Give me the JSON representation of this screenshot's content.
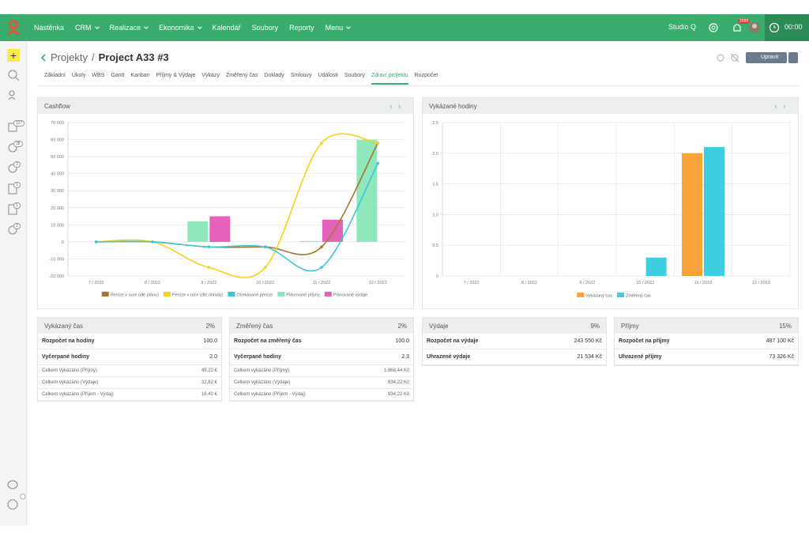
{
  "nav": {
    "items": [
      {
        "label": "Nástěnka",
        "dropdown": false
      },
      {
        "label": "CRM",
        "dropdown": true
      },
      {
        "label": "Realizace",
        "dropdown": true
      },
      {
        "label": "Ekonomika",
        "dropdown": true
      },
      {
        "label": "Kalendář",
        "dropdown": false
      },
      {
        "label": "Soubory",
        "dropdown": false
      },
      {
        "label": "Reporty",
        "dropdown": false
      },
      {
        "label": "Menu",
        "dropdown": true
      }
    ],
    "workspace": "Studio Q",
    "notifications": "2588",
    "timer": "00:00"
  },
  "sidebar": {
    "badges": [
      "127",
      "38",
      "3",
      "1",
      "1",
      "2"
    ]
  },
  "header": {
    "breadcrumb": "Projekty",
    "separator": "/",
    "title": "Project A33 #3",
    "edit_button": "Upravit"
  },
  "tabs": {
    "items": [
      "Základní",
      "Úkoly",
      "WBS",
      "Gantt",
      "Kanban",
      "Příjmy & Výdaje",
      "Výkazy",
      "Změřený čas",
      "Doklady",
      "Smlouvy",
      "Události",
      "Soubory",
      "Zdraví projektu",
      "Rozpočet"
    ],
    "active": 12
  },
  "chart_data": [
    {
      "type": "combo",
      "title": "Cashflow",
      "categories": [
        "7 / 2022",
        "8 / 2022",
        "9 / 2022",
        "10 / 2022",
        "11 / 2022",
        "12 / 2022"
      ],
      "series": [
        {
          "name": "Peníze v ruce (dle plánu)",
          "type": "line",
          "color": "#a8772c",
          "values": [
            0,
            0,
            -3000,
            -3000,
            -3000,
            58000
          ]
        },
        {
          "name": "Peníze v ruce (dle úhrady)",
          "type": "line",
          "color": "#f8d11a",
          "values": [
            0,
            0,
            -15000,
            -15000,
            58000,
            58000
          ]
        },
        {
          "name": "Očekávané peníze",
          "type": "line",
          "color": "#38c9dc",
          "values": [
            0,
            0,
            -3000,
            -3000,
            -15000,
            46000
          ]
        },
        {
          "name": "Plánované příjmy",
          "type": "bar",
          "color": "#8ee8bb",
          "values": [
            0,
            0,
            12000,
            0,
            500,
            60000
          ]
        },
        {
          "name": "Plánované výdaje",
          "type": "bar",
          "color": "#e462b9",
          "values": [
            0,
            0,
            15000,
            0,
            13000,
            0
          ]
        }
      ],
      "ylim": [
        -20000,
        70000
      ],
      "yticks": [
        {
          "value": -20000,
          "label": "-20 000"
        },
        {
          "value": -10000,
          "label": "-10 000"
        },
        0,
        {
          "value": 10000,
          "label": "10 000"
        },
        {
          "value": 20000,
          "label": "20 000"
        },
        {
          "value": 30000,
          "label": "30 000"
        },
        {
          "value": 40000,
          "label": "40 000"
        },
        {
          "value": 50000,
          "label": "50 000"
        },
        {
          "value": 60000,
          "label": "60 000"
        },
        {
          "value": 70000,
          "label": "70 000"
        }
      ],
      "grid": true
    },
    {
      "type": "bar",
      "title": "Vykázané hodiny",
      "categories": [
        "7 / 2022",
        "8 / 2022",
        "9 / 2022",
        "10 / 2022",
        "11 / 2022",
        "12 / 2022"
      ],
      "series": [
        {
          "name": "Vykázaný čas",
          "color": "#f9a33b",
          "values": [
            0,
            0,
            0,
            0,
            2.0,
            0
          ]
        },
        {
          "name": "Změřený čas",
          "color": "#3dcfe0",
          "values": [
            0,
            0,
            0,
            0.3,
            2.1,
            0
          ]
        }
      ],
      "ylim": [
        0,
        2.5
      ],
      "yticks": [
        0,
        0.5,
        {
          "value": 1,
          "label": "1.0"
        },
        1.5,
        {
          "value": 2,
          "label": "2.0"
        },
        2.5
      ],
      "grid": true
    }
  ],
  "cards": [
    {
      "title": "Vykázaný čas",
      "percent": "2%",
      "rows": [
        [
          "Rozpočet na hodiny",
          "100.0"
        ],
        [
          "Vyčerpané hodiny",
          "2.0"
        ]
      ],
      "detail_rows": [
        [
          "Celkem vykázáno (Příjmy)",
          "49,22 €"
        ],
        [
          "Celkem vykázáno (Výdaje)",
          "32,82 €"
        ],
        [
          "Celkem vykázáno (Příjem - Výdaj)",
          "16,40 €"
        ]
      ]
    },
    {
      "title": "Změřený čas",
      "percent": "2%",
      "rows": [
        [
          "Rozpočet na změřený čas",
          "100.0"
        ],
        [
          "Vyčerpané hodiny",
          "2.3"
        ]
      ],
      "detail_rows": [
        [
          "Celkem vykázáno (Příjmy)",
          "1 868,44 Kč"
        ],
        [
          "Celkem vykázáno (Výdaje)",
          "934,22 Kč"
        ],
        [
          "Celkem vykázáno (Příjem - Výdaj)",
          "934,22 Kč"
        ]
      ]
    },
    {
      "title": "Výdaje",
      "percent": "9%",
      "rows": [
        [
          "Rozpočet na výdaje",
          "243 550 Kč"
        ],
        [
          "Uhrazené výdaje",
          "21 534 Kč"
        ]
      ],
      "detail_rows": []
    },
    {
      "title": "Příjmy",
      "percent": "15%",
      "rows": [
        [
          "Rozpočet na příjmy",
          "487 100 Kč"
        ],
        [
          "Uhrazené příjmy",
          "73 326 Kč"
        ]
      ],
      "detail_rows": []
    }
  ]
}
